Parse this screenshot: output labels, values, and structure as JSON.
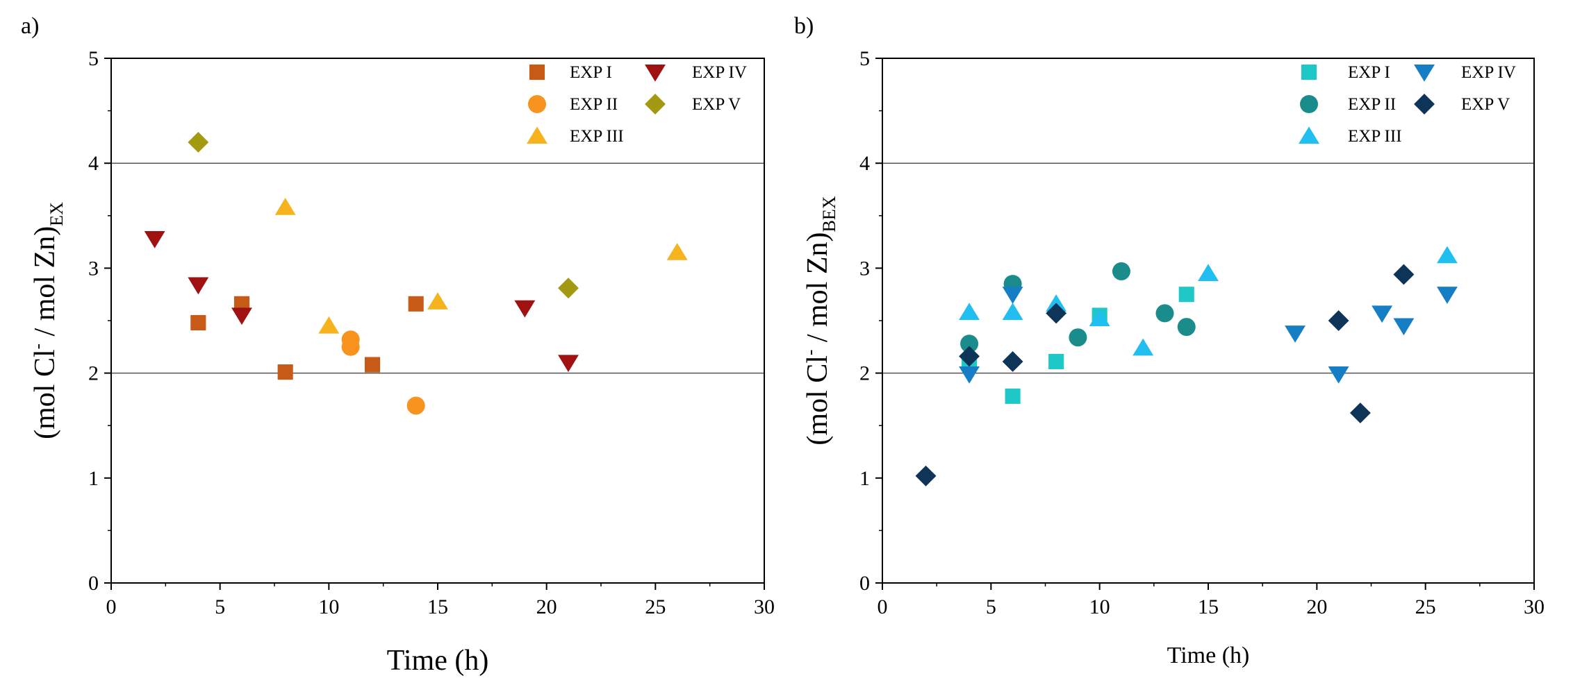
{
  "chart_data": [
    {
      "type": "scatter",
      "panel_label": "a)",
      "xlabel": "Time (h)",
      "ylabel_main": "(mol Cl",
      "ylabel_sup": "-",
      "ylabel_rest": " / mol Zn)",
      "ylabel_sub": "EX",
      "xlim": [
        0,
        30
      ],
      "ylim": [
        0,
        5
      ],
      "xticks": [
        "0",
        "5",
        "10",
        "15",
        "20",
        "25",
        "30"
      ],
      "yticks": [
        "0",
        "1",
        "2",
        "3",
        "4",
        "5"
      ],
      "reference_lines": [
        2,
        4
      ],
      "legend_position": "top-right",
      "series": [
        {
          "name": "EXP I",
          "marker": "square",
          "color": "#C85A17",
          "points": [
            [
              4,
              2.48
            ],
            [
              6,
              2.66
            ],
            [
              8,
              2.01
            ],
            [
              12,
              2.08
            ],
            [
              14,
              2.66
            ]
          ]
        },
        {
          "name": "EXP II",
          "marker": "circle",
          "color": "#F7931E",
          "points": [
            [
              11,
              2.32
            ],
            [
              11,
              2.25
            ],
            [
              14,
              1.69
            ]
          ]
        },
        {
          "name": "EXP III",
          "marker": "triangle-up",
          "color": "#F5B41E",
          "points": [
            [
              8,
              3.58
            ],
            [
              10,
              2.45
            ],
            [
              15,
              2.68
            ],
            [
              26,
              3.15
            ]
          ]
        },
        {
          "name": "EXP IV",
          "marker": "triangle-down",
          "color": "#A01212",
          "points": [
            [
              2,
              3.28
            ],
            [
              4,
              2.84
            ],
            [
              6,
              2.55
            ],
            [
              19,
              2.62
            ],
            [
              21,
              2.1
            ]
          ]
        },
        {
          "name": "EXP V",
          "marker": "diamond",
          "color": "#A39A12",
          "points": [
            [
              4,
              4.2
            ],
            [
              21,
              2.81
            ]
          ]
        }
      ]
    },
    {
      "type": "scatter",
      "panel_label": "b)",
      "xlabel": "Time (h)",
      "ylabel_main": "(mol Cl",
      "ylabel_sup": "-",
      "ylabel_rest": " / mol Zn)",
      "ylabel_sub": "BEX",
      "xlim": [
        0,
        30
      ],
      "ylim": [
        0,
        5
      ],
      "xticks": [
        "0",
        "5",
        "10",
        "15",
        "20",
        "25",
        "30"
      ],
      "yticks": [
        "0",
        "1",
        "2",
        "3",
        "4",
        "5"
      ],
      "reference_lines": [
        2,
        4
      ],
      "legend_position": "top-right",
      "series": [
        {
          "name": "EXP I",
          "marker": "square",
          "color": "#1EC8C8",
          "points": [
            [
              4,
              2.1
            ],
            [
              6,
              1.78
            ],
            [
              8,
              2.11
            ],
            [
              10,
              2.55
            ],
            [
              14,
              2.75
            ]
          ]
        },
        {
          "name": "EXP II",
          "marker": "circle",
          "color": "#1A8C8C",
          "points": [
            [
              4,
              2.28
            ],
            [
              6,
              2.85
            ],
            [
              9,
              2.34
            ],
            [
              11,
              2.97
            ],
            [
              13,
              2.57
            ],
            [
              14,
              2.44
            ]
          ]
        },
        {
          "name": "EXP III",
          "marker": "triangle-up",
          "color": "#21BEF0",
          "points": [
            [
              4,
              2.58
            ],
            [
              6,
              2.58
            ],
            [
              8,
              2.66
            ],
            [
              10,
              2.52
            ],
            [
              12,
              2.24
            ],
            [
              15,
              2.95
            ],
            [
              26,
              3.12
            ]
          ]
        },
        {
          "name": "EXP IV",
          "marker": "triangle-down",
          "color": "#157EC4",
          "points": [
            [
              4,
              1.99
            ],
            [
              6,
              2.75
            ],
            [
              19,
              2.38
            ],
            [
              21,
              1.99
            ],
            [
              23,
              2.57
            ],
            [
              24,
              2.45
            ],
            [
              26,
              2.75
            ]
          ]
        },
        {
          "name": "EXP V",
          "marker": "diamond",
          "color": "#0E3558",
          "points": [
            [
              2,
              1.02
            ],
            [
              4,
              2.16
            ],
            [
              6,
              2.11
            ],
            [
              8,
              2.57
            ],
            [
              21,
              2.5
            ],
            [
              22,
              1.62
            ],
            [
              24,
              2.94
            ]
          ]
        }
      ]
    }
  ]
}
